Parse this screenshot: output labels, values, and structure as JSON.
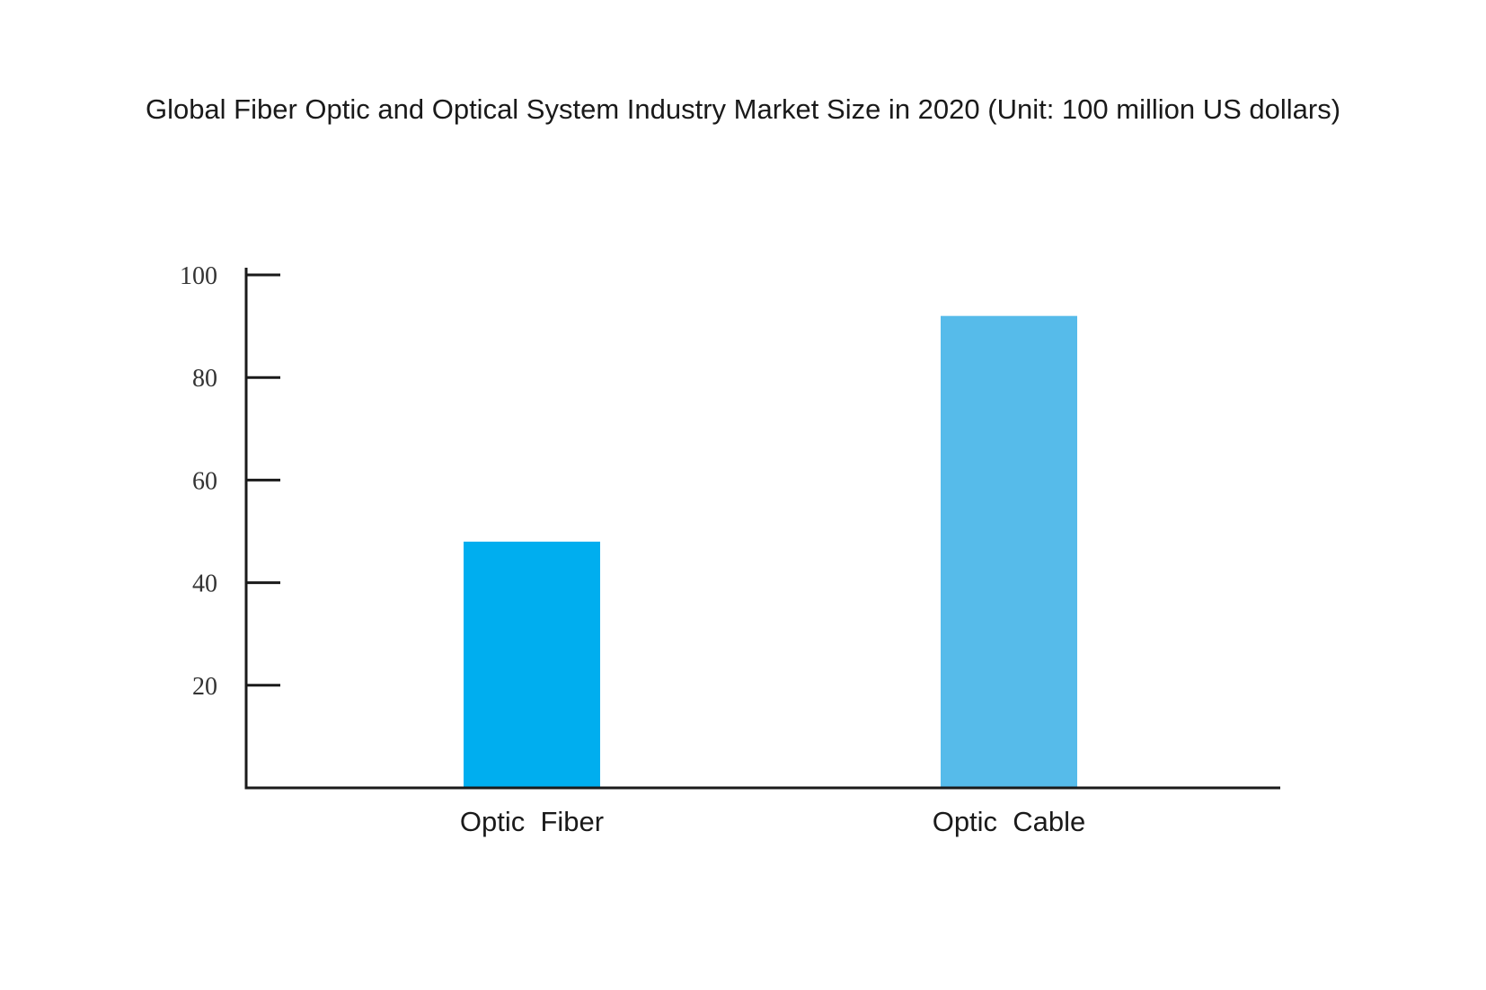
{
  "chart_data": {
    "type": "bar",
    "title": "Global Fiber Optic and Optical System Industry Market Size in 2020 (Unit: 100 million US dollars)",
    "categories": [
      "Optic  Fiber",
      "Optic  Cable"
    ],
    "values": [
      48,
      92
    ],
    "bar_colors": [
      "#00aeef",
      "#56bbea"
    ],
    "yticks": [
      20,
      40,
      60,
      80,
      100
    ],
    "ylim": [
      0,
      100
    ],
    "xlabel": "",
    "ylabel": "",
    "grid": false,
    "legend": "none"
  }
}
